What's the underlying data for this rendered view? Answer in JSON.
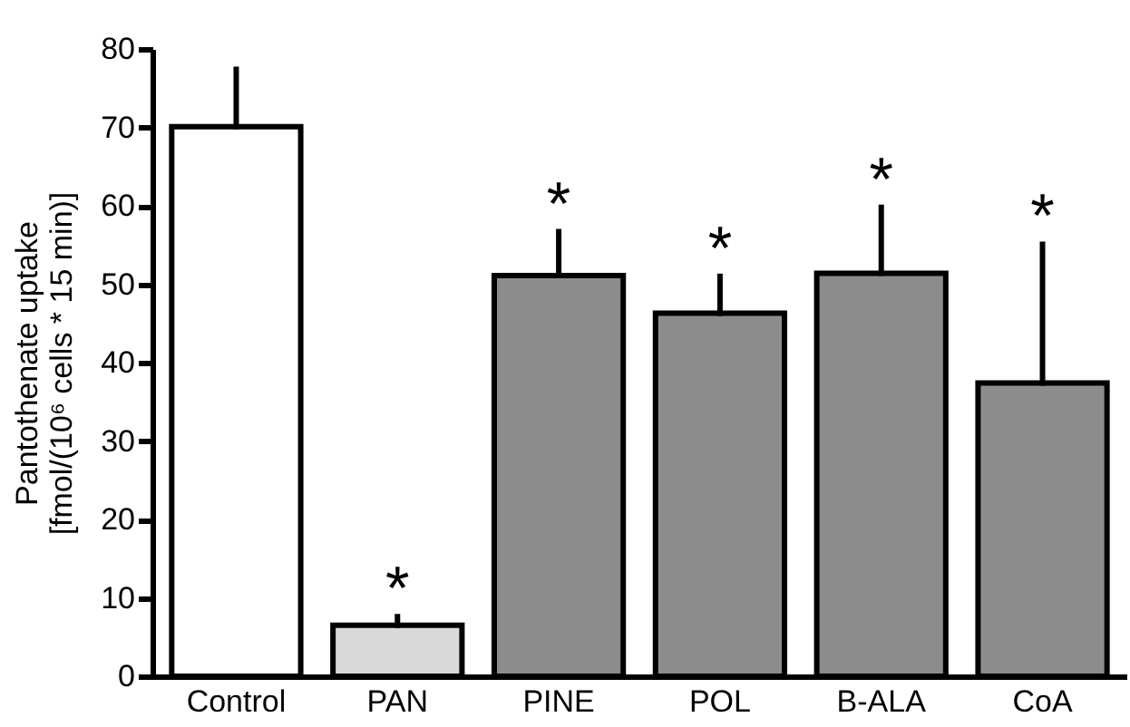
{
  "chart_data": {
    "type": "bar",
    "ylabel": [
      "Pantothenate uptake",
      "[fmol/(10⁶ cells * 15 min)]"
    ],
    "categories": [
      "Control",
      "PAN",
      "PINE",
      "POL",
      "B-ALA",
      "CoA"
    ],
    "values": [
      70.1,
      6.5,
      51.1,
      46.3,
      51.4,
      37.4
    ],
    "errors": [
      [
        70.1,
        77.4
      ],
      [
        6.5,
        7.6
      ],
      [
        51.1,
        56.7
      ],
      [
        46.3,
        51.0
      ],
      [
        51.4,
        59.8
      ],
      [
        37.4,
        55.1
      ]
    ],
    "colors": [
      "#ffffff",
      "#d9d9d9",
      "#8c8c8c",
      "#8c8c8c",
      "#8c8c8c",
      "#8c8c8c"
    ],
    "ylim": [
      0,
      80
    ],
    "yticks": [
      0,
      10,
      20,
      30,
      40,
      50,
      60,
      70,
      80
    ],
    "annotations": [
      {
        "text": "*",
        "x": "PAN",
        "y": 7.6
      },
      {
        "text": "*",
        "x": "PINE",
        "y": 56.7
      },
      {
        "text": "*",
        "x": "POL",
        "y": 51.0
      },
      {
        "text": "*",
        "x": "B-ALA",
        "y": 59.8
      },
      {
        "text": "*",
        "x": "CoA",
        "y": 55.1
      }
    ]
  }
}
